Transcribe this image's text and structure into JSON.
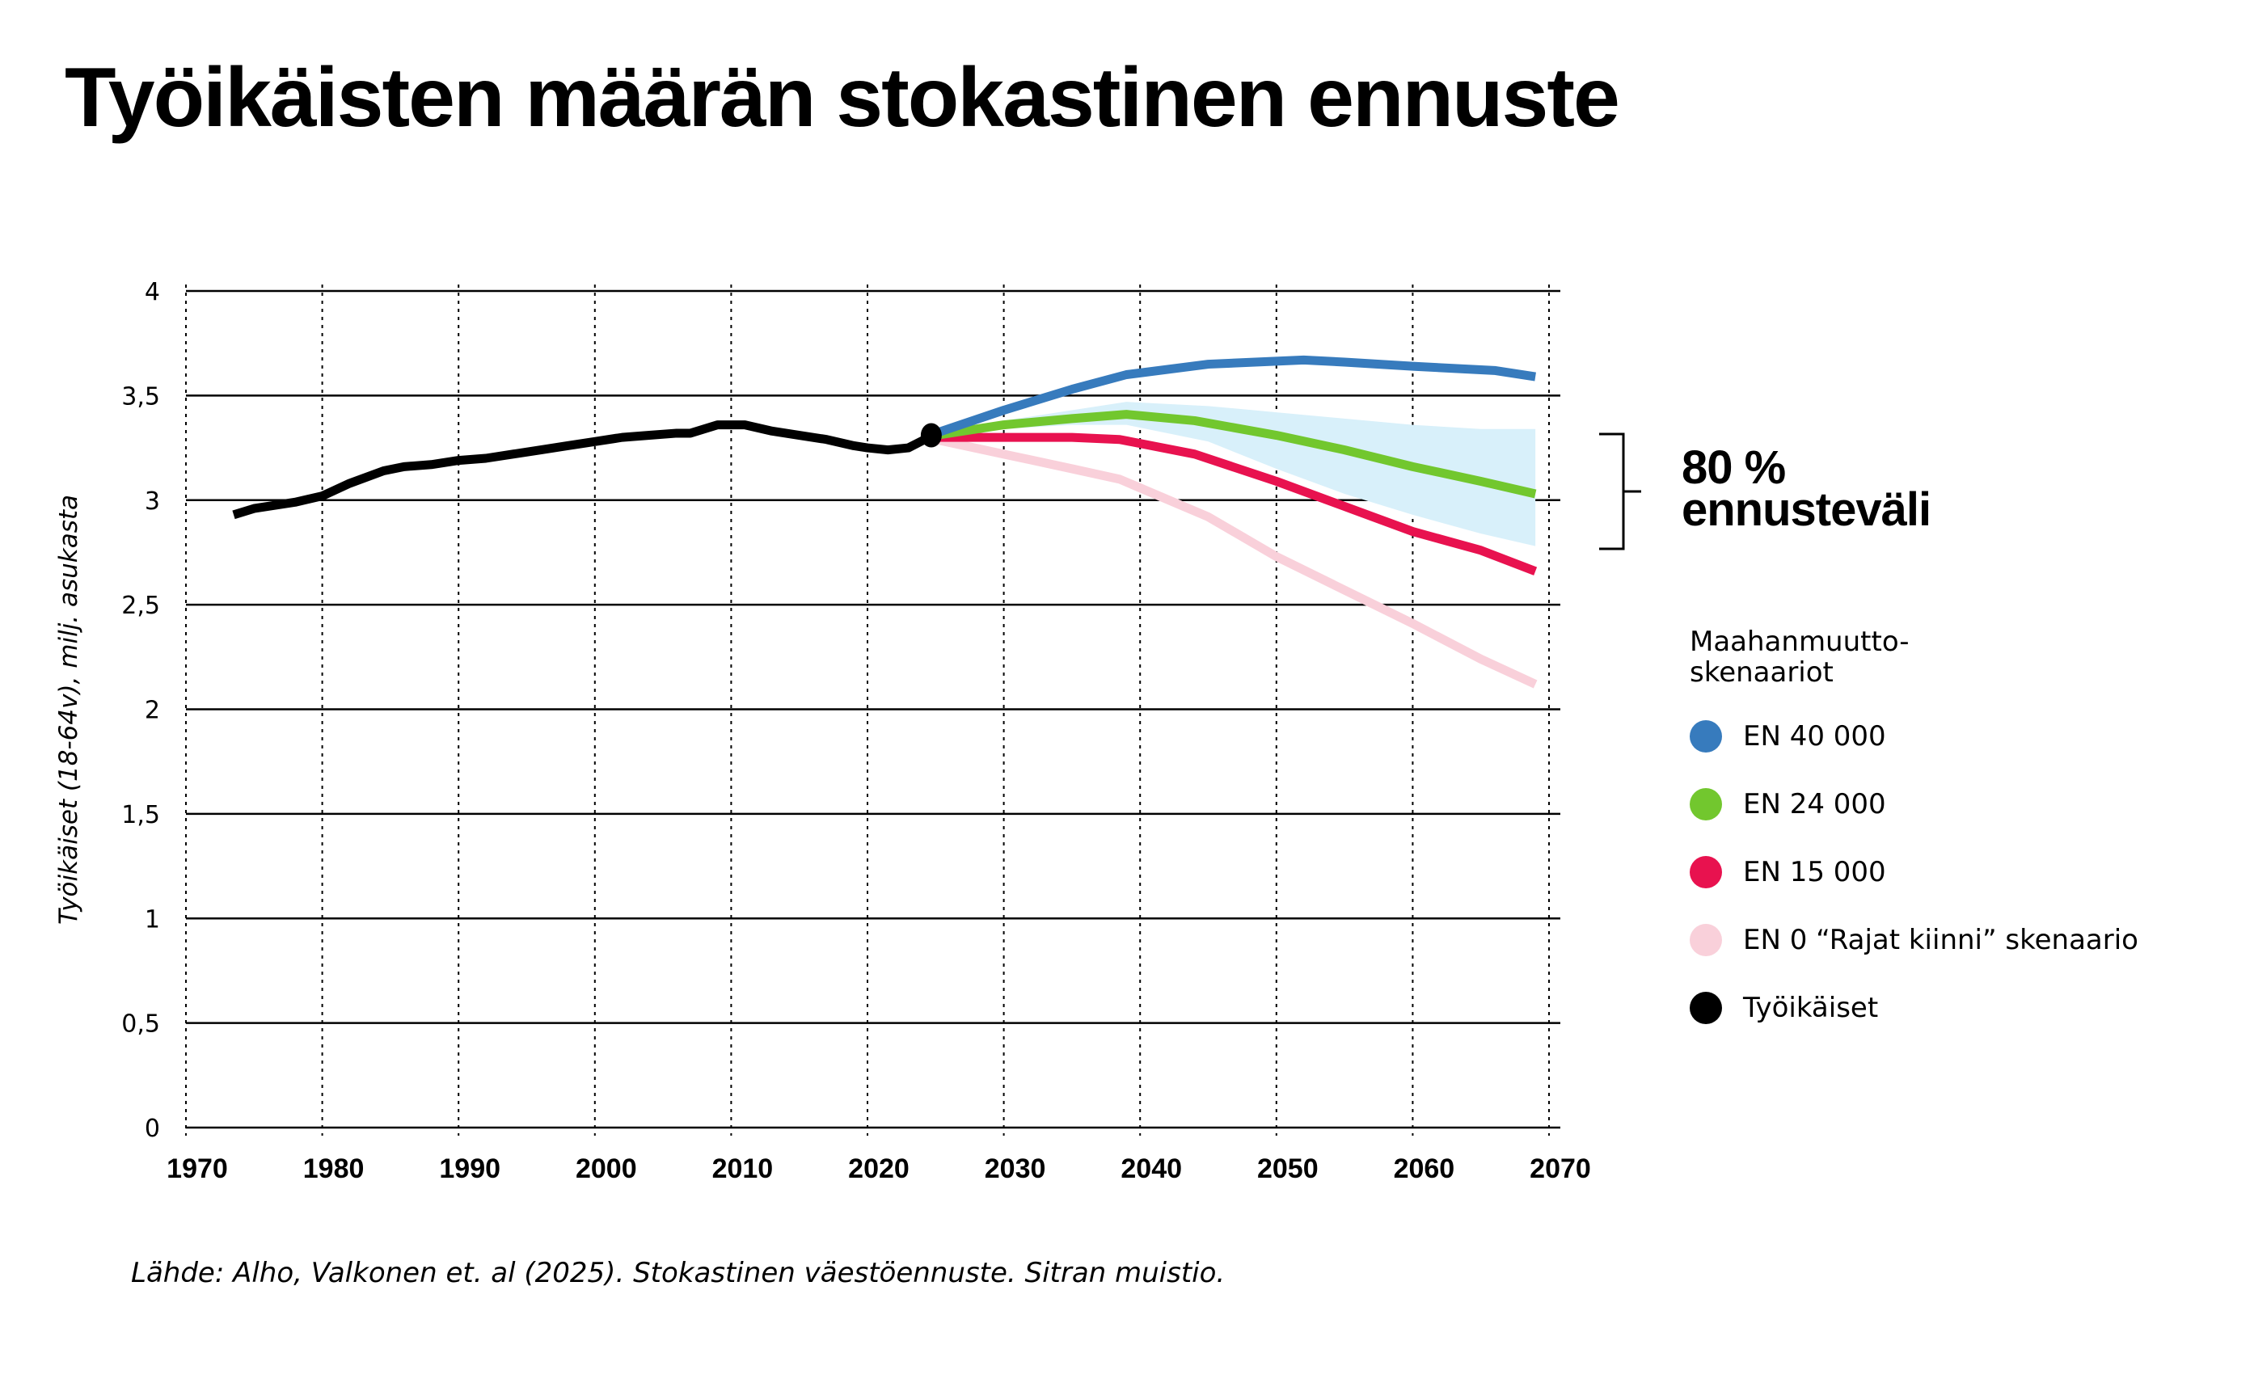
{
  "title": "Työikäisten määrän stokastinen ennuste",
  "source": "Lähde: Alho, Valkonen et. al (2025). Stokastinen väestöennuste. Sitran muistio.",
  "band_annotation": {
    "line1": "80 %",
    "line2": "ennusteväli"
  },
  "legend": {
    "title_line1": "Maahanmuutto-",
    "title_line2": "skenaariot",
    "items": [
      {
        "label": "EN 40 000",
        "color": "#377bbd"
      },
      {
        "label": "EN 24 000",
        "color": "#72c72e"
      },
      {
        "label": "EN 15 000",
        "color": "#e8124f"
      },
      {
        "label": "EN 0 “Rajat kiinni” skenaario",
        "color": "#f9d0da"
      },
      {
        "label": "Työikäiset",
        "color": "#000000"
      }
    ]
  },
  "chart_data": {
    "type": "line",
    "title": "Työikäisten määrän stokastinen ennuste",
    "xlabel": "",
    "ylabel": "Työikäiset (18-64v), milj. asukasta",
    "xlim": [
      1970,
      2070
    ],
    "ylim": [
      0,
      4
    ],
    "x_ticks": [
      "1970",
      "1980",
      "1990",
      "2000",
      "2010",
      "2020",
      "2030",
      "2040",
      "2050",
      "2060",
      "2070"
    ],
    "y_ticks": [
      "0",
      "0,5",
      "1",
      "1,5",
      "2",
      "2,5",
      "3",
      "3,5",
      "4"
    ],
    "grid": true,
    "legend_position": "right",
    "series": [
      {
        "name": "Työikäiset",
        "color": "#000000",
        "x": [
          1973.5,
          1975,
          1978,
          1980,
          1982,
          1984.5,
          1986,
          1988,
          1990,
          1992,
          1994,
          1996,
          1998,
          2000,
          2002,
          2004,
          2006,
          2007,
          2009,
          2011,
          2013,
          2015,
          2017,
          2019,
          2020,
          2021.5,
          2023,
          2024.5
        ],
        "y": [
          2.93,
          2.96,
          2.99,
          3.02,
          3.08,
          3.14,
          3.16,
          3.17,
          3.19,
          3.2,
          3.22,
          3.24,
          3.26,
          3.28,
          3.3,
          3.31,
          3.32,
          3.32,
          3.36,
          3.36,
          3.33,
          3.31,
          3.29,
          3.26,
          3.25,
          3.24,
          3.25,
          3.3
        ]
      },
      {
        "name": "EN 40 000",
        "color": "#377bbd",
        "x": [
          2025,
          2030,
          2035,
          2039,
          2045,
          2052,
          2055,
          2060,
          2066,
          2069
        ],
        "y": [
          3.32,
          3.43,
          3.53,
          3.6,
          3.65,
          3.67,
          3.66,
          3.64,
          3.62,
          3.59
        ]
      },
      {
        "name": "EN 24 000",
        "color": "#72c72e",
        "x": [
          2025,
          2030,
          2035,
          2039,
          2044,
          2050,
          2055,
          2060,
          2065,
          2069
        ],
        "y": [
          3.31,
          3.36,
          3.39,
          3.41,
          3.38,
          3.31,
          3.24,
          3.16,
          3.09,
          3.03
        ]
      },
      {
        "name": "EN 15 000",
        "color": "#e8124f",
        "x": [
          2025,
          2030,
          2035,
          2038.5,
          2044,
          2050,
          2055,
          2060,
          2065,
          2069
        ],
        "y": [
          3.3,
          3.3,
          3.3,
          3.29,
          3.22,
          3.09,
          2.97,
          2.85,
          2.76,
          2.66
        ]
      },
      {
        "name": "EN 0 “Rajat kiinni” skenaario",
        "color": "#f9d0da",
        "x": [
          2025,
          2030,
          2035,
          2038.5,
          2045,
          2050,
          2055,
          2060,
          2065,
          2069
        ],
        "y": [
          3.29,
          3.22,
          3.15,
          3.1,
          2.92,
          2.73,
          2.57,
          2.41,
          2.24,
          2.12
        ]
      }
    ],
    "band": {
      "name": "80 % ennusteväli",
      "color": "#d8f0fa",
      "x": [
        2025,
        2030,
        2035,
        2039,
        2045,
        2050,
        2055,
        2060,
        2065,
        2069
      ],
      "upper": [
        3.32,
        3.38,
        3.43,
        3.47,
        3.45,
        3.42,
        3.39,
        3.36,
        3.34,
        3.34
      ],
      "lower": [
        3.31,
        3.34,
        3.36,
        3.36,
        3.28,
        3.15,
        3.03,
        2.93,
        2.84,
        2.78
      ]
    },
    "marker": {
      "x": 2024.5,
      "y": 3.31,
      "color": "#000000"
    }
  }
}
